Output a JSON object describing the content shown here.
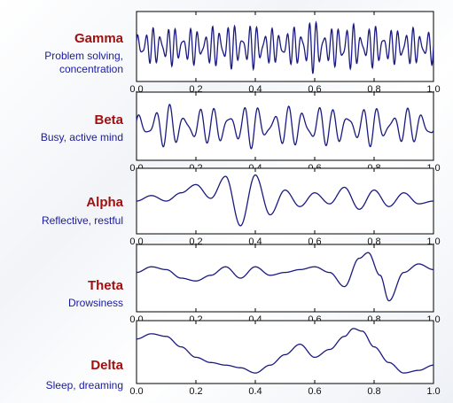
{
  "bands": [
    {
      "name": "Gamma",
      "desc": [
        "Problem solving,",
        "concentration"
      ]
    },
    {
      "name": "Beta",
      "desc": [
        "Busy, active mind"
      ]
    },
    {
      "name": "Alpha",
      "desc": [
        "Reflective, restful"
      ]
    },
    {
      "name": "Theta",
      "desc": [
        "Drowsiness"
      ]
    },
    {
      "name": "Delta",
      "desc": [
        "Sleep, dreaming"
      ]
    }
  ],
  "colors": {
    "line": "#1a1a80",
    "title": "#a01010",
    "desc": "#1a1aa0"
  },
  "chart_data": [
    {
      "type": "line",
      "title": "",
      "xlabel": "",
      "ylabel": "",
      "xlim": [
        0.0,
        1.0
      ],
      "xticks": [
        "0.0",
        "0.2",
        "0.4",
        "0.6",
        "0.8",
        "1.0"
      ],
      "grid": false,
      "series": [
        {
          "name": "",
          "frequency_hz": 40,
          "x": [
            0.0,
            0.1,
            0.2,
            0.3,
            0.4,
            0.5,
            0.6,
            0.7,
            0.8,
            0.9,
            1.0
          ],
          "y": [
            0.0,
            0.3,
            -0.2,
            0.6,
            -0.5,
            0.1,
            0.8,
            -0.7,
            0.4,
            -0.3,
            0.2
          ]
        }
      ]
    },
    {
      "type": "line",
      "title": "",
      "xlabel": "",
      "ylabel": "",
      "xlim": [
        0.0,
        1.0
      ],
      "xticks": [
        "0.0",
        "0.2",
        "0.4",
        "0.6",
        "0.8",
        "1.0"
      ],
      "grid": false,
      "series": [
        {
          "name": "",
          "frequency_hz": 20,
          "x": [
            0.0,
            0.1,
            0.2,
            0.3,
            0.4,
            0.5,
            0.6,
            0.7,
            0.8,
            0.9,
            1.0
          ],
          "y": [
            0.0,
            0.5,
            -0.4,
            0.6,
            -0.6,
            0.3,
            0.7,
            -0.5,
            0.4,
            -0.2,
            0.3
          ]
        }
      ]
    },
    {
      "type": "line",
      "title": "",
      "xlabel": "",
      "ylabel": "",
      "xlim": [
        0.0,
        1.0
      ],
      "xticks": [
        "0.0",
        "0.2",
        "0.4",
        "0.6",
        "0.8",
        "1.0"
      ],
      "grid": false,
      "series": [
        {
          "name": "",
          "frequency_hz": 10,
          "x": [
            0.0,
            0.05,
            0.1,
            0.15,
            0.2,
            0.25,
            0.3,
            0.35,
            0.4,
            0.45,
            0.5,
            0.55,
            0.6,
            0.65,
            0.7,
            0.75,
            0.8,
            0.85,
            0.9,
            0.95,
            1.0
          ],
          "y": [
            0.0,
            0.2,
            0.0,
            0.3,
            0.6,
            0.1,
            0.9,
            -0.9,
            0.95,
            -0.5,
            0.4,
            -0.2,
            0.3,
            -0.1,
            0.5,
            -0.3,
            0.4,
            -0.2,
            0.3,
            -0.1,
            0.0
          ]
        }
      ]
    },
    {
      "type": "line",
      "title": "",
      "xlabel": "",
      "ylabel": "",
      "xlim": [
        0.0,
        1.0
      ],
      "xticks": [
        "0.0",
        "0.2",
        "0.4",
        "0.6",
        "0.8",
        "1.0"
      ],
      "grid": false,
      "series": [
        {
          "name": "",
          "frequency_hz": 6,
          "x": [
            0.0,
            0.05,
            0.1,
            0.15,
            0.2,
            0.25,
            0.3,
            0.35,
            0.4,
            0.45,
            0.5,
            0.55,
            0.6,
            0.65,
            0.7,
            0.75,
            0.78,
            0.82,
            0.85,
            0.9,
            0.95,
            1.0
          ],
          "y": [
            0.2,
            0.4,
            0.3,
            0.0,
            -0.1,
            0.1,
            0.4,
            0.0,
            0.4,
            0.1,
            0.2,
            0.3,
            0.4,
            0.2,
            -0.3,
            0.7,
            0.9,
            0.1,
            -0.8,
            0.2,
            0.5,
            0.3
          ]
        }
      ]
    },
    {
      "type": "line",
      "title": "",
      "xlabel": "",
      "ylabel": "",
      "xlim": [
        0.0,
        1.0
      ],
      "xticks": [
        "0.0",
        "0.2",
        "0.4",
        "0.6",
        "0.8",
        "1.0"
      ],
      "grid": false,
      "series": [
        {
          "name": "",
          "frequency_hz": 2,
          "x": [
            0.0,
            0.05,
            0.1,
            0.15,
            0.2,
            0.25,
            0.3,
            0.35,
            0.4,
            0.45,
            0.5,
            0.55,
            0.6,
            0.65,
            0.7,
            0.73,
            0.76,
            0.8,
            0.85,
            0.9,
            0.95,
            1.0
          ],
          "y": [
            0.5,
            0.7,
            0.6,
            0.2,
            -0.2,
            -0.4,
            -0.5,
            -0.6,
            -0.8,
            -0.5,
            -0.1,
            0.3,
            -0.2,
            0.1,
            0.6,
            0.9,
            0.8,
            0.2,
            -0.4,
            -0.8,
            -0.7,
            -0.5
          ]
        }
      ]
    }
  ]
}
